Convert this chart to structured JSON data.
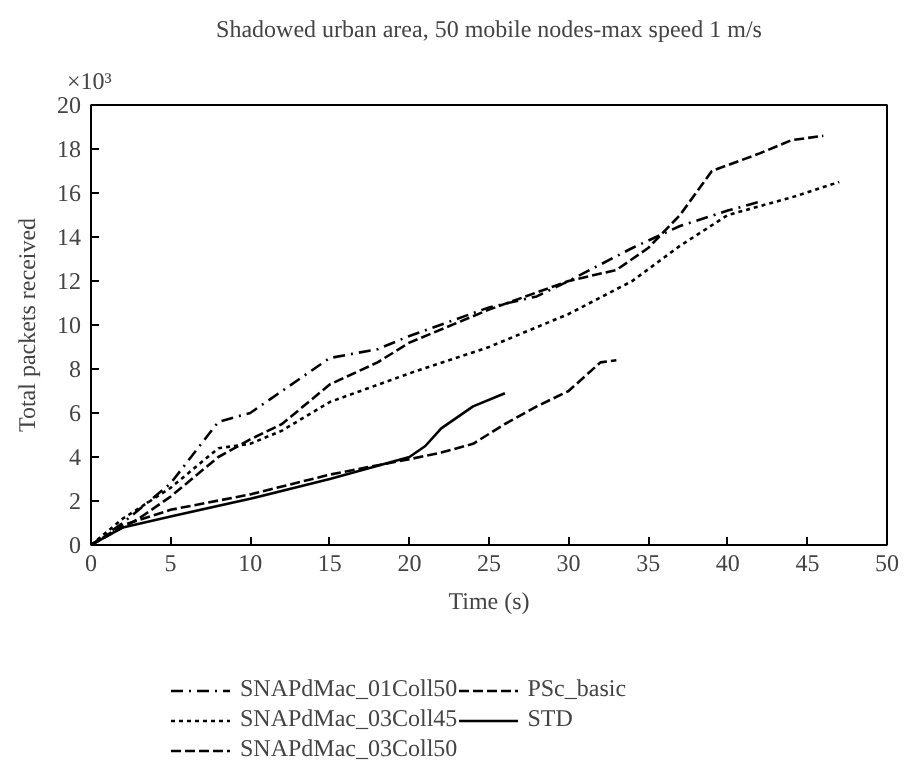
{
  "chart_data": {
    "type": "line",
    "title": "Shadowed urban area, 50 mobile nodes-max speed 1 m/s",
    "xlabel": "Time (s)",
    "ylabel": "Total packets received",
    "annotations": [
      "×10³"
    ],
    "xlim": [
      0,
      50
    ],
    "xticks": [
      0,
      5,
      10,
      15,
      20,
      25,
      30,
      35,
      40,
      45,
      50
    ],
    "ylim": [
      0,
      20
    ],
    "yticks": [
      0,
      2,
      4,
      6,
      8,
      10,
      12,
      14,
      16,
      18,
      20
    ],
    "grid": false,
    "legend": "bottom",
    "marker": "none",
    "series": [
      {
        "name": "SNAPdMac_01Coll50",
        "color": "#000000",
        "line_style": "dashdot",
        "x": [
          0,
          2,
          5,
          8,
          10,
          13,
          15,
          18,
          20,
          25,
          28,
          30,
          34,
          37,
          40,
          42
        ],
        "values": [
          0,
          1,
          2.8,
          5.6,
          6,
          7.5,
          8.5,
          8.9,
          9.5,
          10.8,
          11.3,
          12,
          13.5,
          14.5,
          15.2,
          15.6
        ]
      },
      {
        "name": "SNAPdMac_03Coll45",
        "color": "#000000",
        "line_style": "dotted",
        "x": [
          0,
          2,
          5,
          8,
          10,
          12,
          15,
          20,
          25,
          30,
          34,
          37,
          40,
          44,
          47
        ],
        "values": [
          0,
          1.2,
          2.6,
          4.4,
          4.6,
          5.2,
          6.5,
          7.8,
          9,
          10.5,
          12,
          13.6,
          15,
          15.8,
          16.5
        ]
      },
      {
        "name": "SNAPdMac_03Coll50",
        "color": "#000000",
        "line_style": "dashed",
        "x": [
          0,
          3,
          5,
          8,
          10,
          12,
          15,
          18,
          20,
          25,
          30,
          33,
          35,
          37,
          39,
          42,
          44,
          46
        ],
        "values": [
          0,
          1.2,
          2.2,
          4,
          4.8,
          5.5,
          7.3,
          8.3,
          9.2,
          10.7,
          12,
          12.5,
          13.5,
          15,
          17,
          17.8,
          18.4,
          18.6
        ]
      },
      {
        "name": "PSc_basic",
        "color": "#000000",
        "line_style": "dashed",
        "x": [
          0,
          2,
          5,
          10,
          15,
          20,
          22,
          24,
          26,
          28,
          30,
          32,
          33
        ],
        "values": [
          0,
          0.9,
          1.6,
          2.3,
          3.2,
          3.9,
          4.2,
          4.6,
          5.5,
          6.3,
          7,
          8.3,
          8.4
        ]
      },
      {
        "name": "STD",
        "color": "#000000",
        "line_style": "solid",
        "x": [
          0,
          2,
          5,
          10,
          15,
          20,
          21,
          22,
          24,
          26
        ],
        "values": [
          0,
          0.8,
          1.3,
          2.1,
          3,
          4,
          4.5,
          5.3,
          6.3,
          6.9
        ]
      }
    ]
  }
}
